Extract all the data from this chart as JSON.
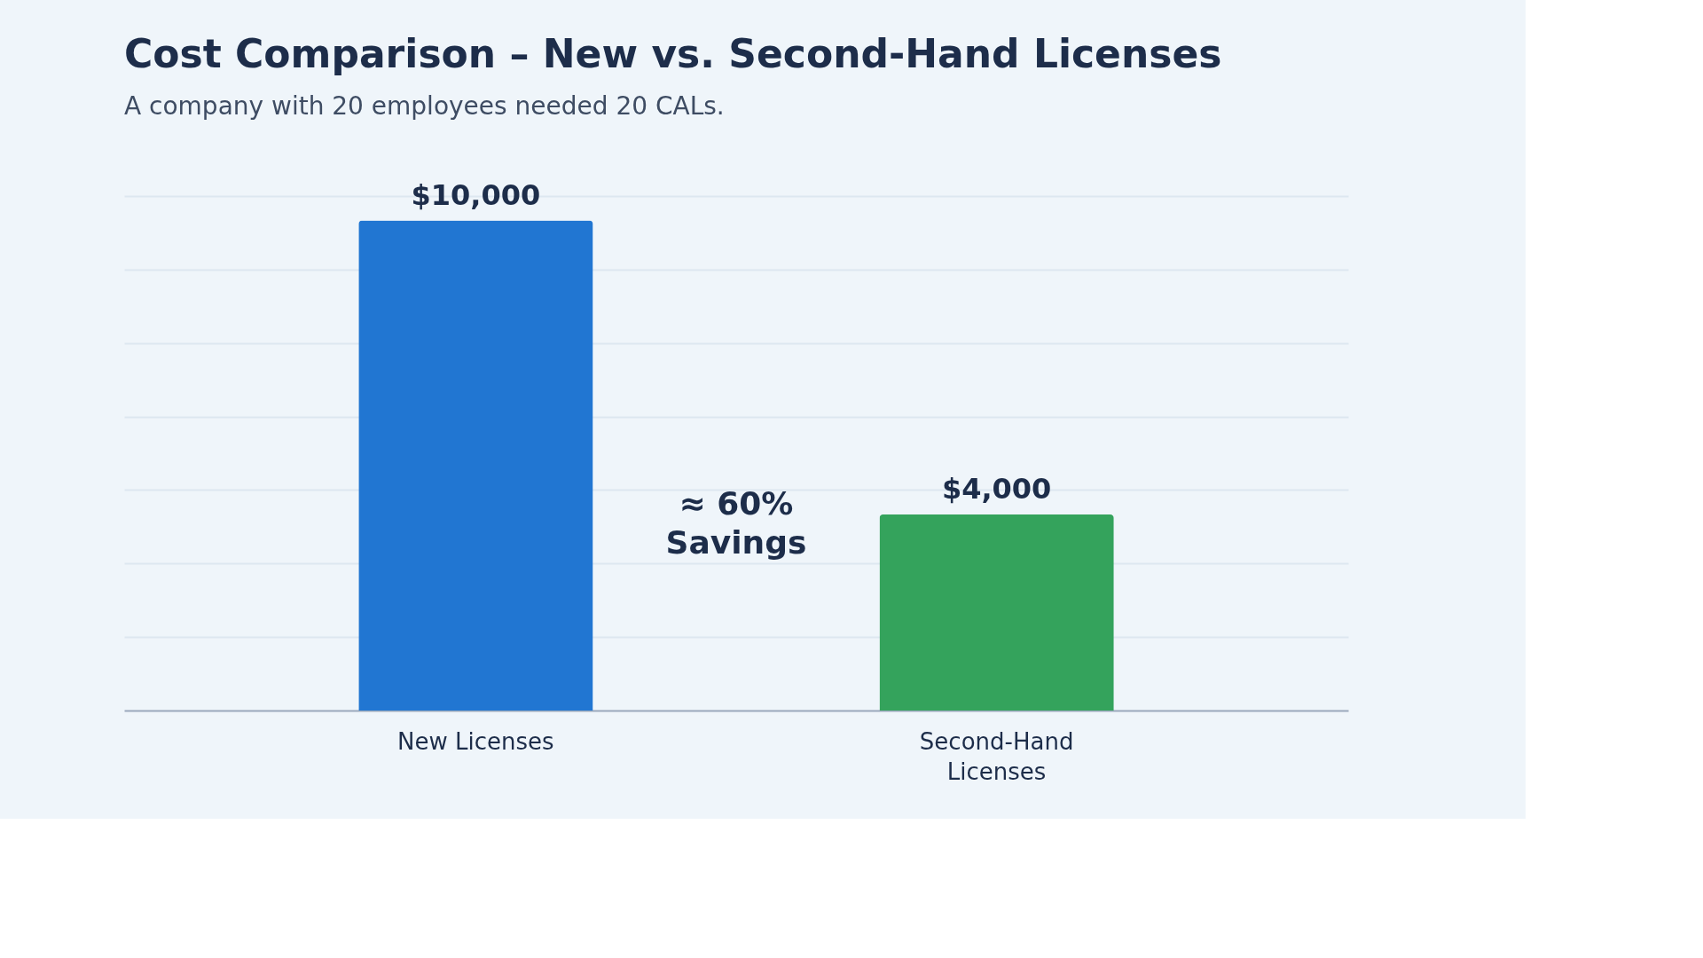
{
  "chart_data": {
    "type": "bar",
    "title": "Cost Comparison – New vs. Second-Hand Licenses",
    "subtitle": "A company with 20 employees needed 20 CALs.",
    "categories": [
      "New Licenses",
      "Second-Hand Licenses"
    ],
    "values": [
      10000,
      4000
    ],
    "colors": [
      "#2176d2",
      "#34a35c"
    ],
    "value_labels": [
      "$10,000",
      "$4,000"
    ],
    "ylim": [
      0,
      10500
    ],
    "yticks": [
      {
        "value": 1500,
        "label": null
      },
      {
        "value": 3000,
        "label": null
      },
      {
        "value": 4500,
        "label": null
      },
      {
        "value": 6000,
        "label": null
      },
      {
        "value": 7500,
        "label": null
      },
      {
        "value": 9000,
        "label": null
      },
      {
        "value": 10500,
        "label": null
      }
    ],
    "grid": "y",
    "tick_labels": "x",
    "annotations": [
      "≈ 60%\nSavings"
    ]
  }
}
